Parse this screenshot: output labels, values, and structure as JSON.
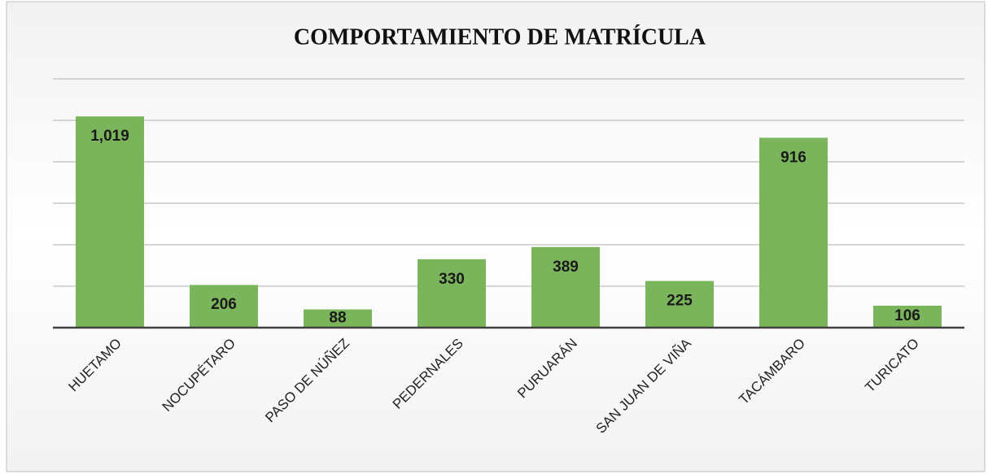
{
  "chart_data": {
    "type": "bar",
    "title": "COMPORTAMIENTO DE MATRÍCULA",
    "categories": [
      "HUETAMO",
      "NOCUPÉTARO",
      "PASO DE NÚÑEZ",
      "PEDERNALES",
      "PURUARÁN",
      "SAN JUAN DE VIÑA",
      "TACÁMBARO",
      "TURICATO"
    ],
    "values": [
      1019,
      206,
      88,
      330,
      389,
      225,
      916,
      106
    ],
    "value_labels": [
      "1,019",
      "206",
      "88",
      "330",
      "389",
      "225",
      "916",
      "106"
    ],
    "color": "#7ab55c",
    "ylim": [
      0,
      1200
    ],
    "yticks": [
      0,
      200,
      400,
      600,
      800,
      1000,
      1200
    ],
    "grid": true
  }
}
